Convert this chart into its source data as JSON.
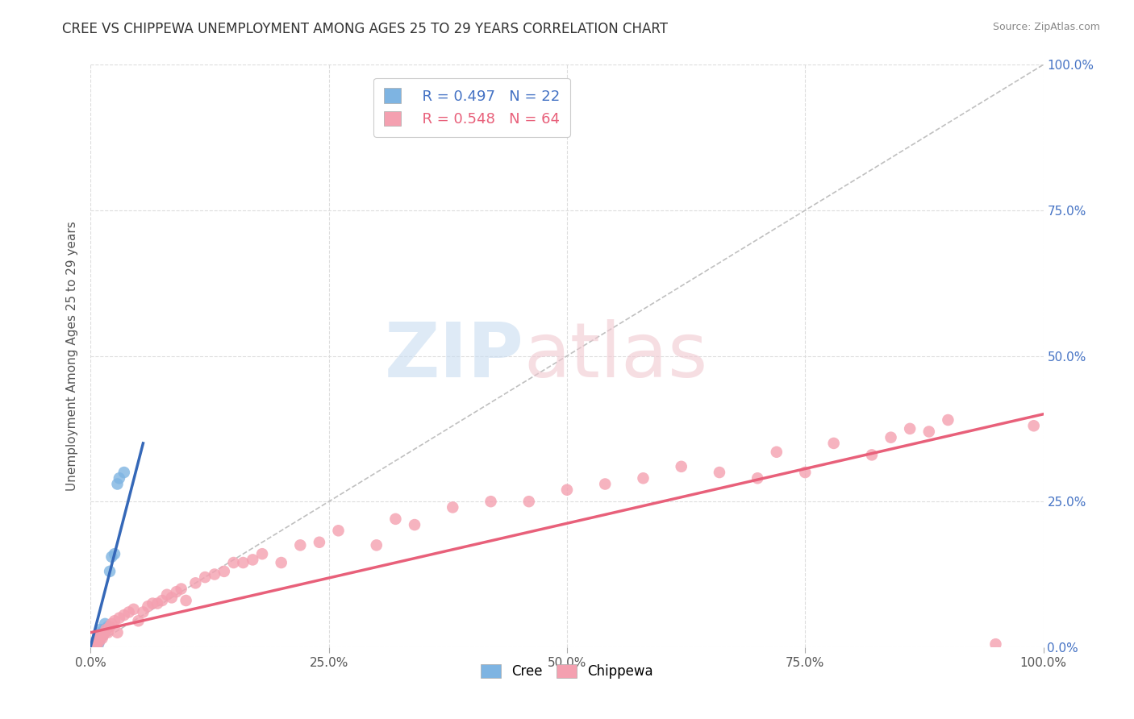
{
  "title": "CREE VS CHIPPEWA UNEMPLOYMENT AMONG AGES 25 TO 29 YEARS CORRELATION CHART",
  "source": "Source: ZipAtlas.com",
  "ylabel": "Unemployment Among Ages 25 to 29 years",
  "xlim": [
    0,
    1.0
  ],
  "ylim": [
    0,
    1.0
  ],
  "xtick_vals": [
    0.0,
    0.25,
    0.5,
    0.75,
    1.0
  ],
  "xtick_labels": [
    "0.0%",
    "25.0%",
    "50.0%",
    "75.0%",
    "100.0%"
  ],
  "ytick_vals": [
    0.0,
    0.25,
    0.5,
    0.75,
    1.0
  ],
  "ytick_labels_right": [
    "0.0%",
    "25.0%",
    "50.0%",
    "75.0%",
    "100.0%"
  ],
  "cree_color": "#7EB4E2",
  "chippewa_color": "#F4A0B0",
  "cree_line_color": "#3568B8",
  "chippewa_line_color": "#E8607A",
  "diagonal_color": "#C0C0C0",
  "R_cree": 0.497,
  "N_cree": 22,
  "R_chippewa": 0.548,
  "N_chippewa": 64,
  "background_color": "#ffffff",
  "grid_color": "#DDDDDD",
  "cree_scatter_x": [
    0.005,
    0.005,
    0.007,
    0.007,
    0.008,
    0.008,
    0.009,
    0.009,
    0.01,
    0.01,
    0.012,
    0.013,
    0.014,
    0.015,
    0.016,
    0.018,
    0.02,
    0.022,
    0.025,
    0.028,
    0.03,
    0.035
  ],
  "cree_scatter_y": [
    0.005,
    0.01,
    0.008,
    0.015,
    0.005,
    0.02,
    0.01,
    0.025,
    0.015,
    0.03,
    0.02,
    0.025,
    0.03,
    0.04,
    0.03,
    0.035,
    0.13,
    0.155,
    0.16,
    0.28,
    0.29,
    0.3
  ],
  "chippewa_scatter_x": [
    0.005,
    0.006,
    0.007,
    0.008,
    0.009,
    0.01,
    0.012,
    0.013,
    0.015,
    0.016,
    0.018,
    0.02,
    0.022,
    0.025,
    0.028,
    0.03,
    0.035,
    0.04,
    0.045,
    0.05,
    0.055,
    0.06,
    0.065,
    0.07,
    0.075,
    0.08,
    0.085,
    0.09,
    0.095,
    0.1,
    0.11,
    0.12,
    0.13,
    0.14,
    0.15,
    0.16,
    0.17,
    0.18,
    0.2,
    0.22,
    0.24,
    0.26,
    0.3,
    0.32,
    0.34,
    0.38,
    0.42,
    0.46,
    0.5,
    0.54,
    0.58,
    0.62,
    0.66,
    0.7,
    0.72,
    0.75,
    0.78,
    0.82,
    0.84,
    0.86,
    0.88,
    0.9,
    0.95,
    0.99
  ],
  "chippewa_scatter_y": [
    0.005,
    0.01,
    0.005,
    0.015,
    0.01,
    0.02,
    0.015,
    0.02,
    0.025,
    0.03,
    0.025,
    0.035,
    0.04,
    0.045,
    0.025,
    0.05,
    0.055,
    0.06,
    0.065,
    0.045,
    0.06,
    0.07,
    0.075,
    0.075,
    0.08,
    0.09,
    0.085,
    0.095,
    0.1,
    0.08,
    0.11,
    0.12,
    0.125,
    0.13,
    0.145,
    0.145,
    0.15,
    0.16,
    0.145,
    0.175,
    0.18,
    0.2,
    0.175,
    0.22,
    0.21,
    0.24,
    0.25,
    0.25,
    0.27,
    0.28,
    0.29,
    0.31,
    0.3,
    0.29,
    0.335,
    0.3,
    0.35,
    0.33,
    0.36,
    0.375,
    0.37,
    0.39,
    0.005,
    0.38
  ],
  "cree_line_x": [
    0.0,
    0.055
  ],
  "cree_line_y": [
    0.002,
    0.35
  ],
  "chippewa_line_x": [
    0.0,
    1.0
  ],
  "chippewa_line_y": [
    0.025,
    0.4
  ]
}
